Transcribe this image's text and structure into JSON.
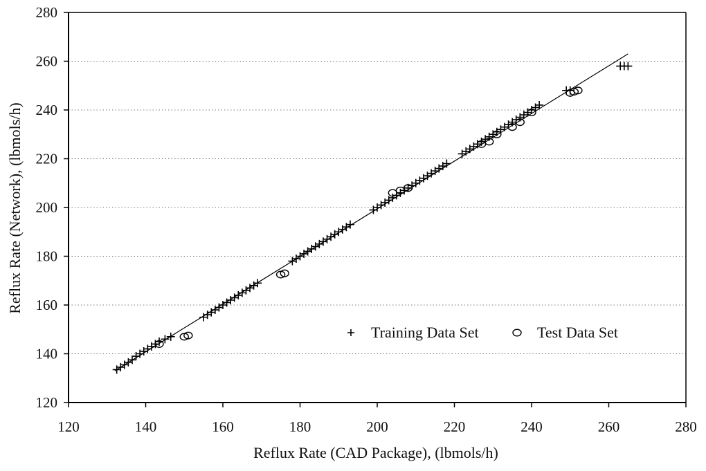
{
  "chart_data": {
    "type": "scatter",
    "title": "",
    "xlabel": "Reflux Rate (CAD Package), (lbmols/h)",
    "ylabel": "Reflux Rate (Network), (lbmols/h)",
    "xlim": [
      120,
      280
    ],
    "ylim": [
      120,
      280
    ],
    "xticks": [
      "120",
      "140",
      "160",
      "180",
      "200",
      "220",
      "240",
      "260",
      "280"
    ],
    "yticks": [
      "120",
      "140",
      "160",
      "180",
      "200",
      "220",
      "240",
      "260",
      "280"
    ],
    "grid": "horizontal dotted",
    "legend_position": "lower-right",
    "reference_line": {
      "x": [
        132,
        265
      ],
      "y": [
        133,
        263
      ]
    },
    "series": [
      {
        "name": "Training Data Set",
        "marker": "plus",
        "points": [
          [
            132.5,
            133.5
          ],
          [
            133.5,
            134.5
          ],
          [
            134.5,
            135.5
          ],
          [
            135.5,
            136.5
          ],
          [
            136.5,
            137.5
          ],
          [
            137.5,
            139
          ],
          [
            138.5,
            140
          ],
          [
            139.5,
            141
          ],
          [
            140.5,
            142
          ],
          [
            141.5,
            143
          ],
          [
            142.5,
            144
          ],
          [
            143.5,
            145
          ],
          [
            145,
            146
          ],
          [
            146.5,
            147
          ],
          [
            155,
            155
          ],
          [
            156,
            156
          ],
          [
            157,
            157
          ],
          [
            158,
            158
          ],
          [
            159,
            159
          ],
          [
            160,
            160
          ],
          [
            161,
            161
          ],
          [
            162,
            162
          ],
          [
            163,
            163
          ],
          [
            164,
            164
          ],
          [
            165,
            165
          ],
          [
            166,
            166
          ],
          [
            167,
            167
          ],
          [
            168,
            168
          ],
          [
            169,
            169
          ],
          [
            178,
            178
          ],
          [
            179,
            179
          ],
          [
            180,
            180
          ],
          [
            181,
            181
          ],
          [
            182,
            182
          ],
          [
            183,
            183
          ],
          [
            184,
            184
          ],
          [
            185,
            185
          ],
          [
            186,
            186
          ],
          [
            187,
            187
          ],
          [
            188,
            188
          ],
          [
            189,
            189
          ],
          [
            190,
            190
          ],
          [
            191,
            191
          ],
          [
            192,
            192
          ],
          [
            193,
            193
          ],
          [
            199,
            199
          ],
          [
            200,
            200
          ],
          [
            201,
            201
          ],
          [
            202,
            202
          ],
          [
            203,
            203
          ],
          [
            204,
            204
          ],
          [
            205,
            205
          ],
          [
            206,
            206
          ],
          [
            207,
            207
          ],
          [
            208,
            208
          ],
          [
            209,
            209
          ],
          [
            210,
            210
          ],
          [
            211,
            211
          ],
          [
            212,
            212
          ],
          [
            213,
            213
          ],
          [
            214,
            214
          ],
          [
            215,
            215
          ],
          [
            216,
            216
          ],
          [
            217,
            217
          ],
          [
            218,
            218
          ],
          [
            222,
            222
          ],
          [
            223,
            223
          ],
          [
            224,
            224
          ],
          [
            225,
            225
          ],
          [
            226,
            226
          ],
          [
            227,
            227
          ],
          [
            228,
            228
          ],
          [
            229,
            229
          ],
          [
            230,
            230
          ],
          [
            231,
            231
          ],
          [
            232,
            232
          ],
          [
            233,
            233
          ],
          [
            234,
            234
          ],
          [
            235,
            235
          ],
          [
            236,
            236
          ],
          [
            237,
            237
          ],
          [
            238,
            238
          ],
          [
            239,
            239
          ],
          [
            240,
            240
          ],
          [
            241,
            241
          ],
          [
            242,
            242
          ],
          [
            249,
            248
          ],
          [
            250,
            248
          ],
          [
            263,
            258
          ],
          [
            264,
            258
          ],
          [
            265,
            258
          ]
        ]
      },
      {
        "name": "Test Data Set",
        "marker": "circle",
        "points": [
          [
            143.5,
            144
          ],
          [
            150,
            147
          ],
          [
            151,
            147.5
          ],
          [
            175,
            172.5
          ],
          [
            176,
            173
          ],
          [
            204,
            206
          ],
          [
            206,
            207
          ],
          [
            208,
            208
          ],
          [
            227,
            226
          ],
          [
            229,
            227
          ],
          [
            231,
            230
          ],
          [
            235,
            233
          ],
          [
            237,
            235
          ],
          [
            240,
            239
          ],
          [
            250,
            247
          ],
          [
            251,
            247.5
          ],
          [
            252,
            248
          ]
        ]
      }
    ]
  }
}
